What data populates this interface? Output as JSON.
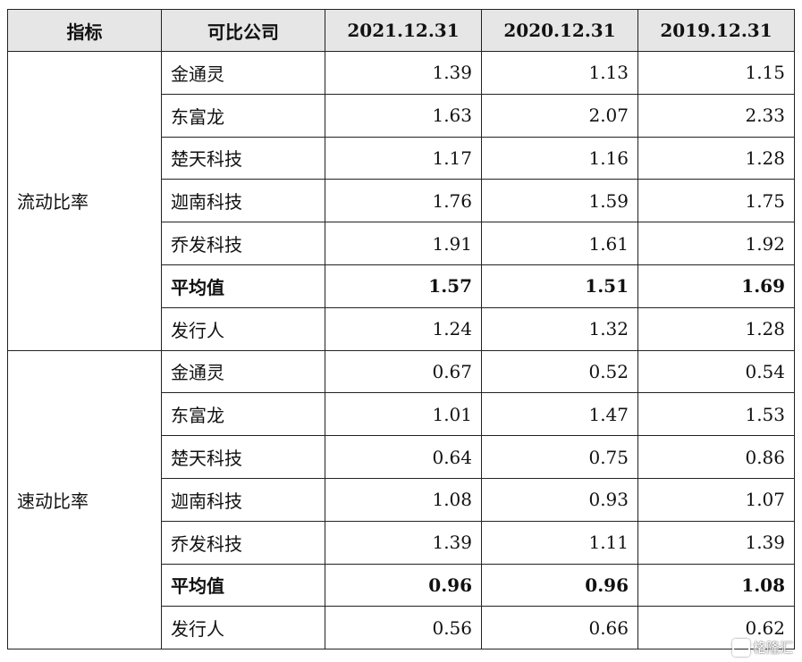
{
  "table": {
    "headers": [
      "指标",
      "可比公司",
      "2021.12.31",
      "2020.12.31",
      "2019.12.31"
    ],
    "groups": [
      {
        "indicator": "流动比率",
        "rows": [
          {
            "company": "金通灵",
            "v2021": "1.39",
            "v2020": "1.13",
            "v2019": "1.15"
          },
          {
            "company": "东富龙",
            "v2021": "1.63",
            "v2020": "2.07",
            "v2019": "2.33"
          },
          {
            "company": "楚天科技",
            "v2021": "1.17",
            "v2020": "1.16",
            "v2019": "1.28"
          },
          {
            "company": "迦南科技",
            "v2021": "1.76",
            "v2020": "1.59",
            "v2019": "1.75"
          },
          {
            "company": "乔发科技",
            "v2021": "1.91",
            "v2020": "1.61",
            "v2019": "1.92"
          },
          {
            "company": "平均值",
            "v2021": "1.57",
            "v2020": "1.51",
            "v2019": "1.69",
            "bold": true
          },
          {
            "company": "发行人",
            "v2021": "1.24",
            "v2020": "1.32",
            "v2019": "1.28"
          }
        ]
      },
      {
        "indicator": "速动比率",
        "rows": [
          {
            "company": "金通灵",
            "v2021": "0.67",
            "v2020": "0.52",
            "v2019": "0.54"
          },
          {
            "company": "东富龙",
            "v2021": "1.01",
            "v2020": "1.47",
            "v2019": "1.53"
          },
          {
            "company": "楚天科技",
            "v2021": "0.64",
            "v2020": "0.75",
            "v2019": "0.86"
          },
          {
            "company": "迦南科技",
            "v2021": "1.08",
            "v2020": "0.93",
            "v2019": "1.07"
          },
          {
            "company": "乔发科技",
            "v2021": "1.39",
            "v2020": "1.11",
            "v2019": "1.39"
          },
          {
            "company": "平均值",
            "v2021": "0.96",
            "v2020": "0.96",
            "v2019": "1.08",
            "bold": true
          },
          {
            "company": "发行人",
            "v2021": "0.56",
            "v2020": "0.66",
            "v2019": "0.62"
          }
        ]
      }
    ]
  },
  "watermark": {
    "text": "格隆汇",
    "icon": "gelonghui-logo-icon"
  }
}
